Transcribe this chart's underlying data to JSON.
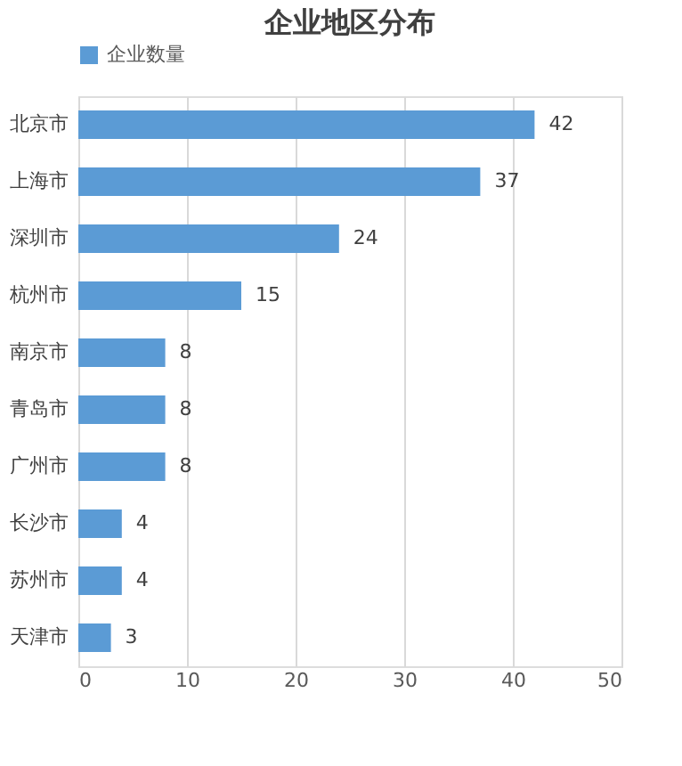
{
  "chart_data": {
    "type": "bar",
    "orientation": "horizontal",
    "title": "企业地区分布",
    "categories": [
      "北京市",
      "上海市",
      "深圳市",
      "杭州市",
      "南京市",
      "青岛市",
      "广州市",
      "长沙市",
      "苏州市",
      "天津市"
    ],
    "series": [
      {
        "name": "企业数量",
        "color": "#5b9bd5",
        "values": [
          42,
          37,
          24,
          15,
          8,
          8,
          8,
          4,
          4,
          3
        ]
      }
    ],
    "xlim": [
      0,
      50
    ],
    "xticks": [
      0,
      10,
      20,
      30,
      40,
      50
    ],
    "grid": "x",
    "legend": "top",
    "data_labels": true
  }
}
